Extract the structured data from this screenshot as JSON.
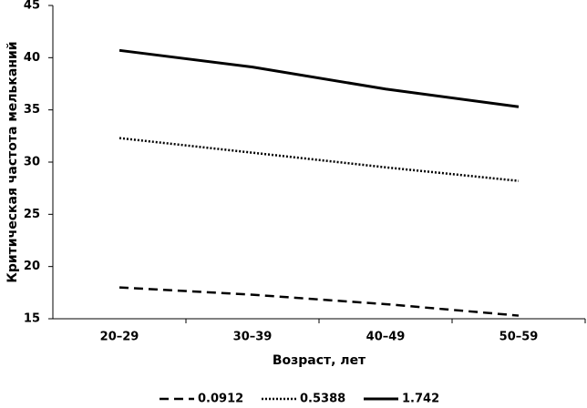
{
  "chart_data": {
    "type": "line",
    "x_label": "Возраст, лет",
    "y_label": "Критическая частота мельканий",
    "categories": [
      "20–29",
      "30–39",
      "40–49",
      "50–59"
    ],
    "series": [
      {
        "name": "0.0912",
        "color": "#000000",
        "style": "dashed",
        "values": [
          18.0,
          17.3,
          16.4,
          15.3
        ]
      },
      {
        "name": "0.5388",
        "color": "#000000",
        "style": "dotted",
        "values": [
          32.3,
          30.9,
          29.5,
          28.2
        ]
      },
      {
        "name": "1.742",
        "color": "#000000",
        "style": "solid",
        "values": [
          40.7,
          39.1,
          37.0,
          35.3
        ]
      }
    ],
    "ylim": [
      15,
      45
    ],
    "yticks": [
      15,
      20,
      25,
      30,
      35,
      40,
      45
    ],
    "grid": false,
    "legend": "bottom"
  }
}
